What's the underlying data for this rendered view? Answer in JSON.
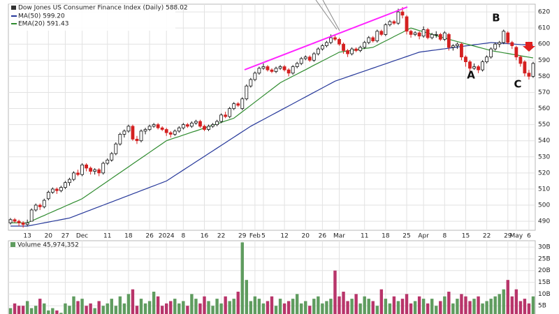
{
  "chart_data": {
    "type": "candlestick",
    "title": "Dow Jones US Consumer Finance Index (Daily) 588.02",
    "categories": [
      null,
      null,
      null,
      null,
      "13",
      null,
      null,
      null,
      null,
      "20",
      null,
      null,
      null,
      "27",
      null,
      null,
      null,
      "Dec",
      null,
      null,
      null,
      null,
      null,
      "11",
      null,
      null,
      null,
      null,
      "18",
      null,
      null,
      null,
      null,
      "26",
      null,
      null,
      null,
      "2024",
      null,
      null,
      null,
      "8",
      null,
      null,
      null,
      null,
      "16",
      null,
      null,
      null,
      "22",
      null,
      null,
      null,
      null,
      "29",
      null,
      null,
      "Feb",
      null,
      "5",
      null,
      null,
      null,
      null,
      "12",
      null,
      null,
      null,
      null,
      "20",
      null,
      null,
      null,
      "26",
      null,
      null,
      null,
      "Mar",
      null,
      null,
      null,
      null,
      null,
      "11",
      null,
      null,
      null,
      null,
      "18",
      null,
      null,
      null,
      null,
      "25",
      null,
      null,
      null,
      "Apr",
      null,
      null,
      null,
      null,
      "8",
      null,
      null,
      null,
      null,
      "15",
      null,
      null,
      null,
      null,
      "22",
      null,
      null,
      null,
      null,
      "29",
      null,
      "May",
      null,
      null,
      "6",
      null
    ],
    "ohlc": [
      [
        489,
        492,
        488,
        491
      ],
      [
        491,
        492,
        489,
        490
      ],
      [
        490,
        491,
        487,
        489
      ],
      [
        489,
        490,
        486,
        488
      ],
      [
        488,
        491,
        487,
        489
      ],
      [
        490,
        498,
        490,
        497
      ],
      [
        497,
        501,
        496,
        500
      ],
      [
        500,
        501,
        497,
        499
      ],
      [
        499,
        504,
        498,
        503
      ],
      [
        504,
        509,
        503,
        508
      ],
      [
        508,
        511,
        507,
        510
      ],
      [
        510,
        511,
        507,
        509
      ],
      [
        509,
        512,
        508,
        511
      ],
      [
        511,
        515,
        510,
        514
      ],
      [
        514,
        517,
        512,
        516
      ],
      [
        516,
        521,
        515,
        520
      ],
      [
        520,
        522,
        518,
        519
      ],
      [
        519,
        526,
        518,
        525
      ],
      [
        525,
        526,
        521,
        523
      ],
      [
        523,
        524,
        519,
        521
      ],
      [
        521,
        523,
        519,
        522
      ],
      [
        522,
        523,
        518,
        520
      ],
      [
        520,
        527,
        519,
        526
      ],
      [
        526,
        529,
        525,
        528
      ],
      [
        528,
        533,
        527,
        532
      ],
      [
        532,
        539,
        531,
        538
      ],
      [
        538,
        545,
        537,
        544
      ],
      [
        544,
        547,
        542,
        546
      ],
      [
        546,
        550,
        545,
        549
      ],
      [
        549,
        550,
        540,
        541
      ],
      [
        541,
        543,
        538,
        540
      ],
      [
        540,
        547,
        539,
        546
      ],
      [
        546,
        548,
        544,
        547
      ],
      [
        547,
        550,
        546,
        549
      ],
      [
        549,
        551,
        548,
        550
      ],
      [
        550,
        551,
        547,
        548
      ],
      [
        548,
        549,
        546,
        547
      ],
      [
        547,
        548,
        543,
        545
      ],
      [
        545,
        546,
        542,
        544
      ],
      [
        544,
        547,
        543,
        546
      ],
      [
        546,
        549,
        545,
        548
      ],
      [
        548,
        551,
        547,
        550
      ],
      [
        550,
        551,
        548,
        549
      ],
      [
        549,
        552,
        548,
        551
      ],
      [
        551,
        553,
        550,
        552
      ],
      [
        552,
        553,
        548,
        549
      ],
      [
        549,
        550,
        546,
        547
      ],
      [
        547,
        550,
        546,
        549
      ],
      [
        549,
        551,
        548,
        550
      ],
      [
        550,
        553,
        549,
        552
      ],
      [
        552,
        557,
        551,
        556
      ],
      [
        556,
        558,
        554,
        555
      ],
      [
        555,
        561,
        554,
        560
      ],
      [
        560,
        564,
        559,
        563
      ],
      [
        563,
        564,
        561,
        562
      ],
      [
        560,
        567,
        559,
        566
      ],
      [
        566,
        575,
        565,
        574
      ],
      [
        574,
        579,
        573,
        578
      ],
      [
        578,
        583,
        577,
        582
      ],
      [
        582,
        586,
        581,
        585
      ],
      [
        585,
        588,
        584,
        586
      ],
      [
        586,
        587,
        583,
        584
      ],
      [
        584,
        585,
        582,
        583
      ],
      [
        583,
        586,
        582,
        585
      ],
      [
        585,
        587,
        584,
        586
      ],
      [
        586,
        587,
        583,
        584
      ],
      [
        584,
        585,
        580,
        582
      ],
      [
        582,
        587,
        581,
        586
      ],
      [
        586,
        589,
        585,
        588
      ],
      [
        588,
        592,
        587,
        591
      ],
      [
        591,
        593,
        590,
        592
      ],
      [
        592,
        593,
        589,
        590
      ],
      [
        590,
        595,
        589,
        594
      ],
      [
        594,
        598,
        593,
        597
      ],
      [
        597,
        600,
        596,
        599
      ],
      [
        599,
        602,
        598,
        601
      ],
      [
        601,
        606,
        600,
        604
      ],
      [
        604,
        606,
        602,
        603
      ],
      [
        603,
        604,
        599,
        600
      ],
      [
        600,
        601,
        594,
        596
      ],
      [
        596,
        597,
        592,
        594
      ],
      [
        594,
        598,
        593,
        597
      ],
      [
        597,
        598,
        595,
        596
      ],
      [
        596,
        599,
        595,
        598
      ],
      [
        598,
        602,
        597,
        601
      ],
      [
        601,
        605,
        600,
        604
      ],
      [
        604,
        605,
        601,
        602
      ],
      [
        602,
        609,
        601,
        608
      ],
      [
        608,
        609,
        605,
        606
      ],
      [
        606,
        613,
        605,
        612
      ],
      [
        612,
        615,
        611,
        614
      ],
      [
        614,
        615,
        612,
        613
      ],
      [
        613,
        622,
        612,
        620
      ],
      [
        620,
        623,
        616,
        618
      ],
      [
        617,
        618,
        606,
        608
      ],
      [
        608,
        609,
        604,
        606
      ],
      [
        606,
        608,
        605,
        607
      ],
      [
        607,
        608,
        603,
        605
      ],
      [
        605,
        611,
        604,
        609
      ],
      [
        609,
        610,
        603,
        604
      ],
      [
        604,
        607,
        603,
        606
      ],
      [
        606,
        608,
        604,
        606
      ],
      [
        606,
        607,
        602,
        603
      ],
      [
        603,
        608,
        602,
        607
      ],
      [
        606,
        607,
        596,
        598
      ],
      [
        598,
        600,
        596,
        599
      ],
      [
        599,
        601,
        597,
        600
      ],
      [
        600,
        601,
        590,
        592
      ],
      [
        592,
        593,
        586,
        589
      ],
      [
        589,
        590,
        583,
        585
      ],
      [
        585,
        588,
        584,
        586
      ],
      [
        586,
        587,
        582,
        584
      ],
      [
        584,
        590,
        583,
        589
      ],
      [
        589,
        593,
        588,
        592
      ],
      [
        592,
        598,
        591,
        597
      ],
      [
        597,
        601,
        596,
        600
      ],
      [
        600,
        602,
        598,
        601
      ],
      [
        601,
        609,
        600,
        608
      ],
      [
        607,
        608,
        600,
        601
      ],
      [
        601,
        602,
        597,
        599
      ],
      [
        598,
        599,
        590,
        592
      ],
      [
        592,
        593,
        586,
        588
      ],
      [
        589,
        590,
        580,
        582
      ],
      [
        582,
        584,
        578,
        580
      ],
      [
        580,
        589,
        579,
        588.02
      ]
    ],
    "up_color": "#111111",
    "down_color": "#d42020",
    "series": [
      {
        "name": "MA(50) 599.20",
        "color": "#26389a",
        "values": [
          487,
          487,
          487,
          487,
          487,
          487.5,
          488,
          488.5,
          489,
          489.5,
          490,
          490.5,
          491,
          491.5,
          492,
          493,
          494,
          495,
          496,
          497,
          498,
          499,
          500,
          501,
          502,
          503,
          504,
          505,
          506,
          507,
          508,
          509,
          510,
          511,
          512,
          513,
          514,
          515,
          516.7,
          518.4,
          520.1,
          521.8,
          523.5,
          525.2,
          526.9,
          528.6,
          530.3,
          532,
          533.7,
          535.4,
          537.1,
          538.8,
          540.5,
          542.2,
          543.9,
          545.6,
          547.3,
          549,
          550.4,
          551.8,
          553.2,
          554.6,
          556,
          557.4,
          558.8,
          560.2,
          561.6,
          563,
          564.4,
          565.8,
          567.2,
          568.6,
          570,
          571.4,
          572.8,
          574.2,
          575.6,
          577,
          577.9,
          578.8,
          579.7,
          580.6,
          581.5,
          582.4,
          583.3,
          584.2,
          585.1,
          586,
          586.9,
          587.8,
          588.7,
          589.6,
          590.5,
          591.4,
          592.3,
          593.2,
          594.1,
          595,
          595.4,
          595.7,
          596.1,
          596.4,
          596.8,
          597.1,
          597.5,
          597.8,
          598.2,
          598.5,
          598.9,
          599.2,
          599.6,
          599.9,
          600.3,
          600.6,
          601,
          600.8,
          600.6,
          600.5,
          600.3,
          600.1,
          599.9,
          599.7,
          599.6,
          599.4,
          599.2
        ]
      },
      {
        "name": "EMA(20) 591.43",
        "color": "#2e8b2e",
        "values": [
          489,
          489,
          489,
          489,
          489,
          490.2,
          491.3,
          492.5,
          493.6,
          494.8,
          495.9,
          497.1,
          498.2,
          499.4,
          500.5,
          501.7,
          502.8,
          504,
          505.8,
          507.6,
          509.4,
          511.2,
          513,
          514.8,
          516.6,
          518.4,
          520.2,
          522,
          523.8,
          525.6,
          527.4,
          529.2,
          531,
          532.8,
          534.6,
          536.4,
          538.2,
          540,
          540.9,
          541.8,
          542.6,
          543.5,
          544.4,
          545.3,
          546.1,
          547,
          547.9,
          548.8,
          549.6,
          550.5,
          551.4,
          552.3,
          553.1,
          554,
          556,
          558,
          560,
          562,
          564,
          566,
          568,
          570,
          572,
          574,
          576,
          577.4,
          578.7,
          580.1,
          581.4,
          582.8,
          584.1,
          585.5,
          586.9,
          588.2,
          589.6,
          590.9,
          592.3,
          593.6,
          595,
          595.4,
          595.8,
          596.1,
          596.5,
          596.9,
          597.3,
          597.6,
          598,
          599.3,
          600.7,
          602,
          603.3,
          604.7,
          606,
          607.3,
          608.7,
          610,
          609.2,
          608.4,
          607.7,
          606.9,
          606.1,
          605.3,
          604.6,
          603.8,
          603,
          602.3,
          601.6,
          600.9,
          600.2,
          599.5,
          598.8,
          598.1,
          597.4,
          596.7,
          596,
          595.5,
          595.1,
          594.6,
          594.2,
          593.7,
          593.3,
          592.8,
          592.3,
          591.9,
          591.43
        ]
      }
    ],
    "ylim": [
      484.4,
      624.8
    ],
    "yticks": [
      490,
      500,
      510,
      520,
      530,
      540,
      550,
      560,
      570,
      580,
      590,
      600,
      610,
      620
    ],
    "grid": true,
    "volume": {
      "label": "Volume 45,974,352",
      "values": [
        4,
        6,
        5,
        5,
        7,
        4,
        5,
        8,
        6,
        3,
        4,
        3,
        2,
        6,
        5,
        9,
        7,
        8,
        5,
        6,
        4,
        7,
        5,
        6,
        8,
        5,
        9,
        6,
        10,
        12,
        5,
        8,
        6,
        7,
        11,
        9,
        5,
        6,
        7,
        8,
        6,
        7,
        5,
        10,
        8,
        6,
        9,
        7,
        5,
        8,
        6,
        9,
        7,
        8,
        11,
        32,
        16,
        7,
        9,
        8,
        6,
        7,
        9,
        5,
        8,
        6,
        7,
        8,
        10,
        6,
        7,
        5,
        8,
        9,
        6,
        7,
        8,
        20,
        9,
        11,
        7,
        8,
        10,
        6,
        9,
        8,
        7,
        5,
        12,
        8,
        6,
        9,
        7,
        8,
        10,
        6,
        7,
        9,
        8,
        6,
        8,
        5,
        7,
        9,
        11,
        6,
        8,
        10,
        9,
        7,
        8,
        9,
        6,
        7,
        8,
        9,
        10,
        12,
        16,
        9,
        12,
        7,
        8,
        6,
        9
      ],
      "up_color": "#5f9c5f",
      "down_color": "#b8356a",
      "ylim": [
        1.5,
        32.7
      ],
      "yticks": [
        {
          "value": 5,
          "label": "5B"
        },
        {
          "value": 10,
          "label": "10B"
        },
        {
          "value": 15,
          "label": "15B"
        },
        {
          "value": 20,
          "label": "20B"
        },
        {
          "value": 25,
          "label": "25B"
        },
        {
          "value": 30,
          "label": "30B"
        }
      ]
    },
    "annotations": [
      "A",
      "B",
      "C"
    ]
  }
}
